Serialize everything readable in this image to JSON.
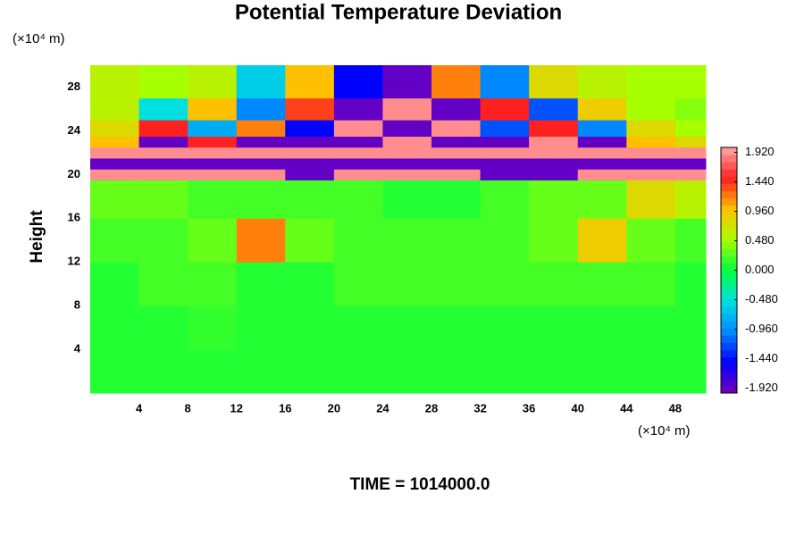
{
  "chart_data": {
    "type": "heatmap",
    "title": "Potential Temperature Deviation",
    "y_label": "Height",
    "y_unit": "(×10⁴ m)",
    "x_unit": "(×10⁴ m)",
    "footer": "TIME = 1014000.0",
    "xlim": [
      0,
      50.5
    ],
    "ylim": [
      0,
      30
    ],
    "xticks": [
      4,
      8,
      12,
      16,
      20,
      24,
      28,
      32,
      36,
      40,
      44,
      48
    ],
    "yticks": [
      4,
      8,
      12,
      16,
      20,
      24,
      28
    ],
    "grid": false,
    "x_edges": [
      0,
      4,
      8,
      12,
      16,
      20,
      24,
      28,
      32,
      36,
      40,
      44,
      48,
      50.5
    ],
    "y_edges": [
      0,
      4,
      8,
      12,
      16,
      19.5,
      20.5,
      21.5,
      22.5,
      23.5,
      25,
      27,
      30
    ],
    "z": [
      [
        0.1,
        0.1,
        0.1,
        0.1,
        0.1,
        0.1,
        0.1,
        0.1,
        0.1,
        0.1,
        0.1,
        0.1,
        0.1
      ],
      [
        0.1,
        0.1,
        0.15,
        0.1,
        0.1,
        0.1,
        0.1,
        0.1,
        0.1,
        0.1,
        0.1,
        0.1,
        0.1
      ],
      [
        0.1,
        0.2,
        0.2,
        0.1,
        0.1,
        0.2,
        0.2,
        0.2,
        0.2,
        0.2,
        0.2,
        0.2,
        0.1
      ],
      [
        0.2,
        0.2,
        0.3,
        1.2,
        0.3,
        0.2,
        0.2,
        0.2,
        0.2,
        0.3,
        0.9,
        0.3,
        0.2
      ],
      [
        0.3,
        0.3,
        0.2,
        0.2,
        0.2,
        0.2,
        0.1,
        0.1,
        0.2,
        0.3,
        0.3,
        0.8,
        0.6
      ],
      [
        1.9,
        1.9,
        1.9,
        1.9,
        -1.9,
        1.9,
        1.9,
        1.9,
        -1.9,
        -1.9,
        1.9,
        1.9,
        1.9
      ],
      [
        -1.9,
        -1.9,
        -1.9,
        -1.9,
        -1.9,
        -1.9,
        -1.9,
        -1.9,
        -1.9,
        -1.9,
        -1.9,
        -1.9,
        -1.9
      ],
      [
        1.9,
        1.9,
        1.9,
        1.9,
        1.9,
        1.9,
        1.9,
        1.9,
        1.9,
        1.9,
        1.9,
        1.9,
        1.9
      ],
      [
        1.0,
        -1.9,
        1.5,
        -1.9,
        -1.9,
        -1.9,
        1.9,
        -1.9,
        -1.9,
        1.9,
        -1.9,
        1.0,
        0.8
      ],
      [
        0.8,
        1.5,
        -0.8,
        1.2,
        -1.5,
        1.9,
        -1.9,
        1.9,
        -1.2,
        1.5,
        -1.0,
        0.8,
        0.5
      ],
      [
        0.6,
        -0.5,
        1.0,
        -1.0,
        1.4,
        -1.9,
        1.9,
        -1.9,
        1.5,
        -1.2,
        0.9,
        0.5,
        0.4
      ],
      [
        0.6,
        0.5,
        0.6,
        -0.6,
        1.0,
        -1.5,
        -1.9,
        1.2,
        -1.0,
        0.8,
        0.6,
        0.5,
        0.5
      ]
    ],
    "clim": [
      -2,
      2
    ],
    "colorscale": [
      "#7a00b8",
      "#0000ff",
      "#0088ff",
      "#00e0e0",
      "#00ff40",
      "#a8ff00",
      "#ffc000",
      "#ff2020",
      "#ffa8a8"
    ],
    "cticks": [
      {
        "value": -1.92,
        "label": "-1.920"
      },
      {
        "value": -1.44,
        "label": "-1.440"
      },
      {
        "value": -0.96,
        "label": "-0.960"
      },
      {
        "value": -0.48,
        "label": "-0.480"
      },
      {
        "value": 0,
        "label": "0.000"
      },
      {
        "value": 0.48,
        "label": "0.480"
      },
      {
        "value": 0.96,
        "label": "0.960"
      },
      {
        "value": 1.44,
        "label": "1.440"
      },
      {
        "value": 1.92,
        "label": "1.920"
      }
    ]
  }
}
